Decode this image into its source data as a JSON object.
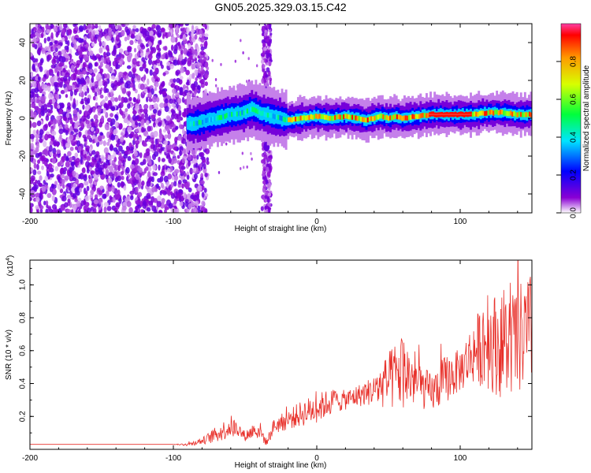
{
  "title": "GN05.2025.329.03.15.C42",
  "chart_data": [
    {
      "type": "heatmap",
      "xlabel": "Height of straight line (km)",
      "ylabel": "Frequency (Hz)",
      "xlim": [
        -200,
        150
      ],
      "ylim": [
        -50,
        50
      ],
      "xticks": [
        -200,
        -100,
        0,
        100
      ],
      "yticks": [
        -40,
        -20,
        0,
        20,
        40
      ],
      "colorbar": {
        "label": "Normalized spectral amplitude",
        "range": [
          0,
          1
        ],
        "ticks": [
          "0.0",
          "0.2",
          "0.4",
          "0.6",
          "0.8"
        ],
        "colors": [
          "#ffffff",
          "#8a00d4",
          "#0000ff",
          "#00e5ff",
          "#00ff3c",
          "#d8ff00",
          "#ff9a00",
          "#ff0000",
          "#ff3fa5"
        ]
      },
      "ridge": {
        "description_values": {
          "x": [
            -88,
            -80,
            -70,
            -60,
            -50,
            -45,
            -40,
            -35,
            -30,
            -25,
            -20,
            -10,
            0,
            10,
            20,
            30,
            35,
            40,
            45,
            50,
            55,
            60,
            70,
            80,
            90,
            100,
            110,
            120,
            130,
            140,
            150
          ],
          "y": [
            -3,
            -2,
            0,
            2,
            3,
            5,
            3,
            2,
            1,
            0,
            -1,
            0,
            1,
            0,
            1,
            0,
            -1,
            0,
            1,
            0,
            1,
            0,
            1,
            2,
            2,
            2,
            2,
            3,
            3,
            2,
            2
          ]
        }
      },
      "noise_region_x": [
        -200,
        -82
      ],
      "interference_band_x": [
        -40,
        -30
      ],
      "interference_feature": {
        "x": -35,
        "y": -15
      }
    },
    {
      "type": "line",
      "xlabel": "Height of straight line (km)",
      "ylabel": "SNR (10 * v/v)",
      "scale_label": "(x10",
      "scale_exponent": "4",
      "scale_suffix": ")",
      "xlim": [
        -200,
        150
      ],
      "ylim": [
        0,
        1.15
      ],
      "xticks": [
        -200,
        -100,
        0,
        100
      ],
      "yticks": [
        "0.2",
        "0.4",
        "0.6",
        "0.8",
        "1.0"
      ],
      "color": "#e8302a",
      "series": [
        {
          "x": [
            -200,
            -180,
            -160,
            -140,
            -120,
            -100,
            -90,
            -80,
            -70,
            -60,
            -55,
            -50,
            -45,
            -40,
            -35,
            -30,
            -20,
            -10,
            0,
            10,
            20,
            30,
            40,
            50,
            60,
            70,
            80,
            90,
            100,
            110,
            120,
            130,
            140,
            150
          ],
          "values": [
            0.03,
            0.03,
            0.03,
            0.03,
            0.03,
            0.03,
            0.03,
            0.05,
            0.09,
            0.14,
            0.12,
            0.08,
            0.11,
            0.12,
            0.04,
            0.14,
            0.18,
            0.22,
            0.25,
            0.29,
            0.3,
            0.33,
            0.36,
            0.41,
            0.48,
            0.4,
            0.34,
            0.43,
            0.48,
            0.6,
            0.66,
            0.62,
            0.66,
            0.72
          ],
          "noise_amplitude": [
            0,
            0,
            0,
            0,
            0,
            0,
            0.01,
            0.02,
            0.05,
            0.07,
            0.05,
            0.03,
            0.05,
            0.06,
            0.02,
            0.05,
            0.06,
            0.08,
            0.09,
            0.08,
            0.06,
            0.07,
            0.09,
            0.18,
            0.24,
            0.14,
            0.12,
            0.15,
            0.13,
            0.2,
            0.3,
            0.32,
            0.34,
            0.36
          ]
        }
      ]
    }
  ]
}
